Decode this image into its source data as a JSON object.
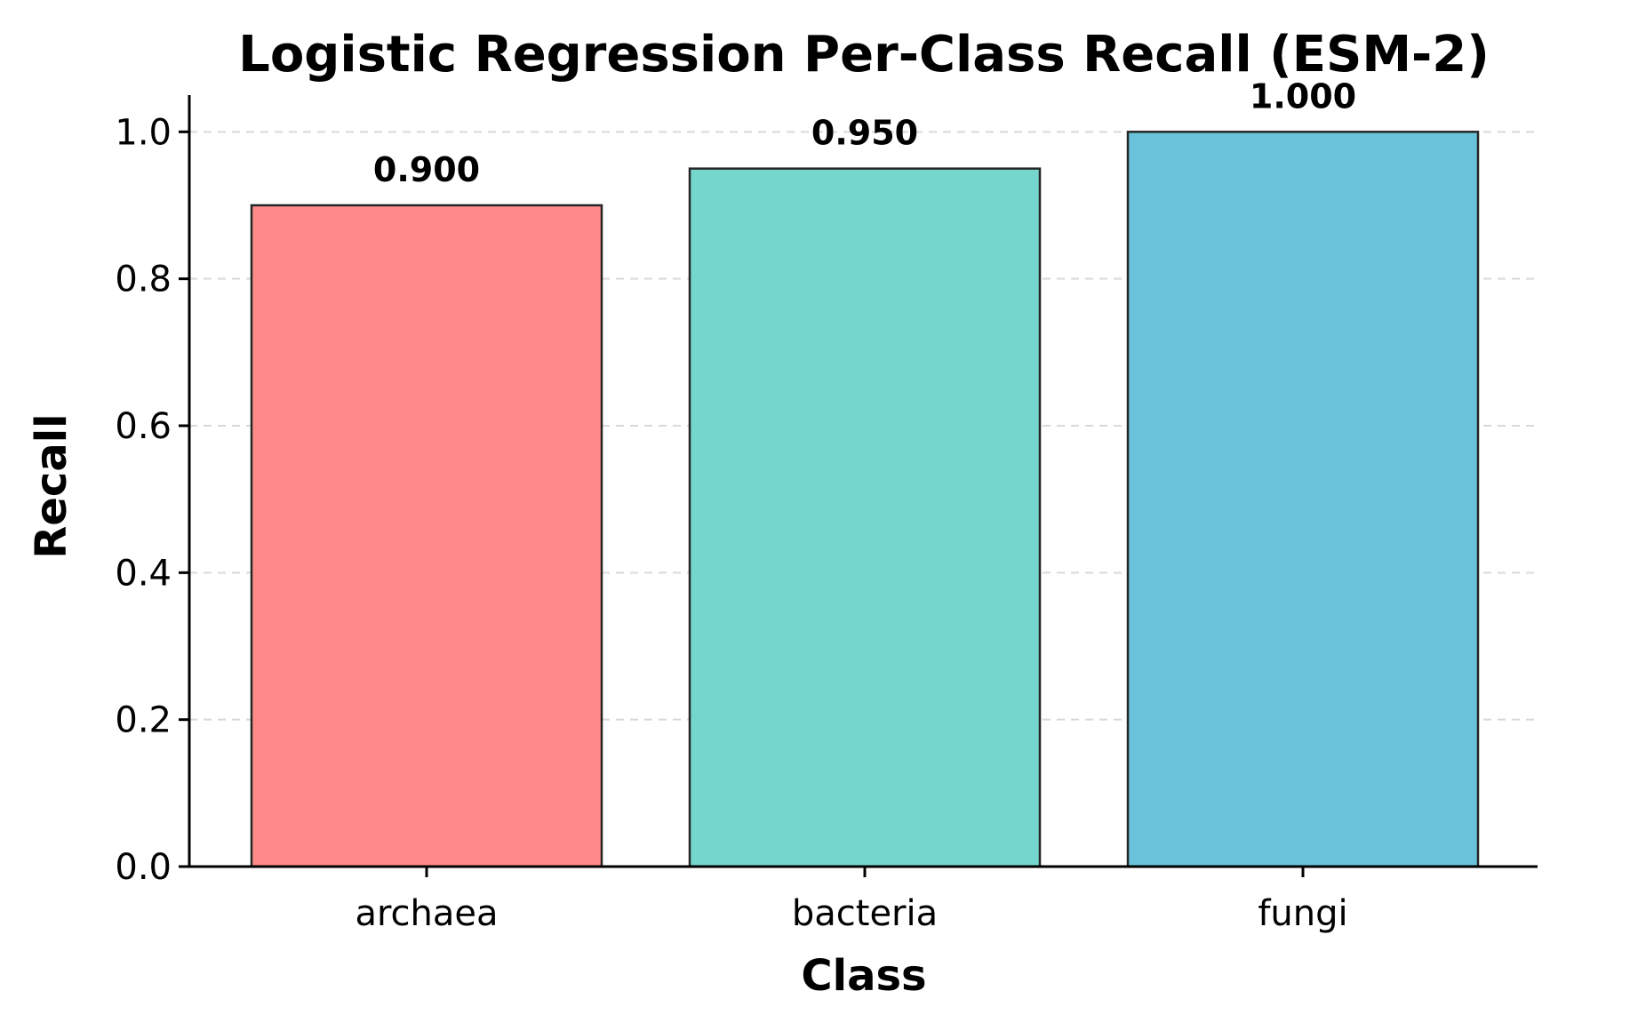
{
  "chart_data": {
    "type": "bar",
    "title": "Logistic Regression Per-Class Recall (ESM-2)",
    "xlabel": "Class",
    "ylabel": "Recall",
    "categories": [
      "archaea",
      "bacteria",
      "fungi"
    ],
    "values": [
      0.9,
      0.95,
      1.0
    ],
    "value_labels": [
      "0.900",
      "0.950",
      "1.000"
    ],
    "colors": [
      "#ff8a8a",
      "#75d6ce",
      "#69c3da"
    ],
    "ylim": [
      0,
      1.05
    ],
    "yticks": [
      0.0,
      0.2,
      0.4,
      0.6,
      0.8,
      1.0
    ],
    "ytick_labels": [
      "0.0",
      "0.2",
      "0.4",
      "0.6",
      "0.8",
      "1.0"
    ],
    "grid": "y-dashed",
    "legend": "none"
  }
}
